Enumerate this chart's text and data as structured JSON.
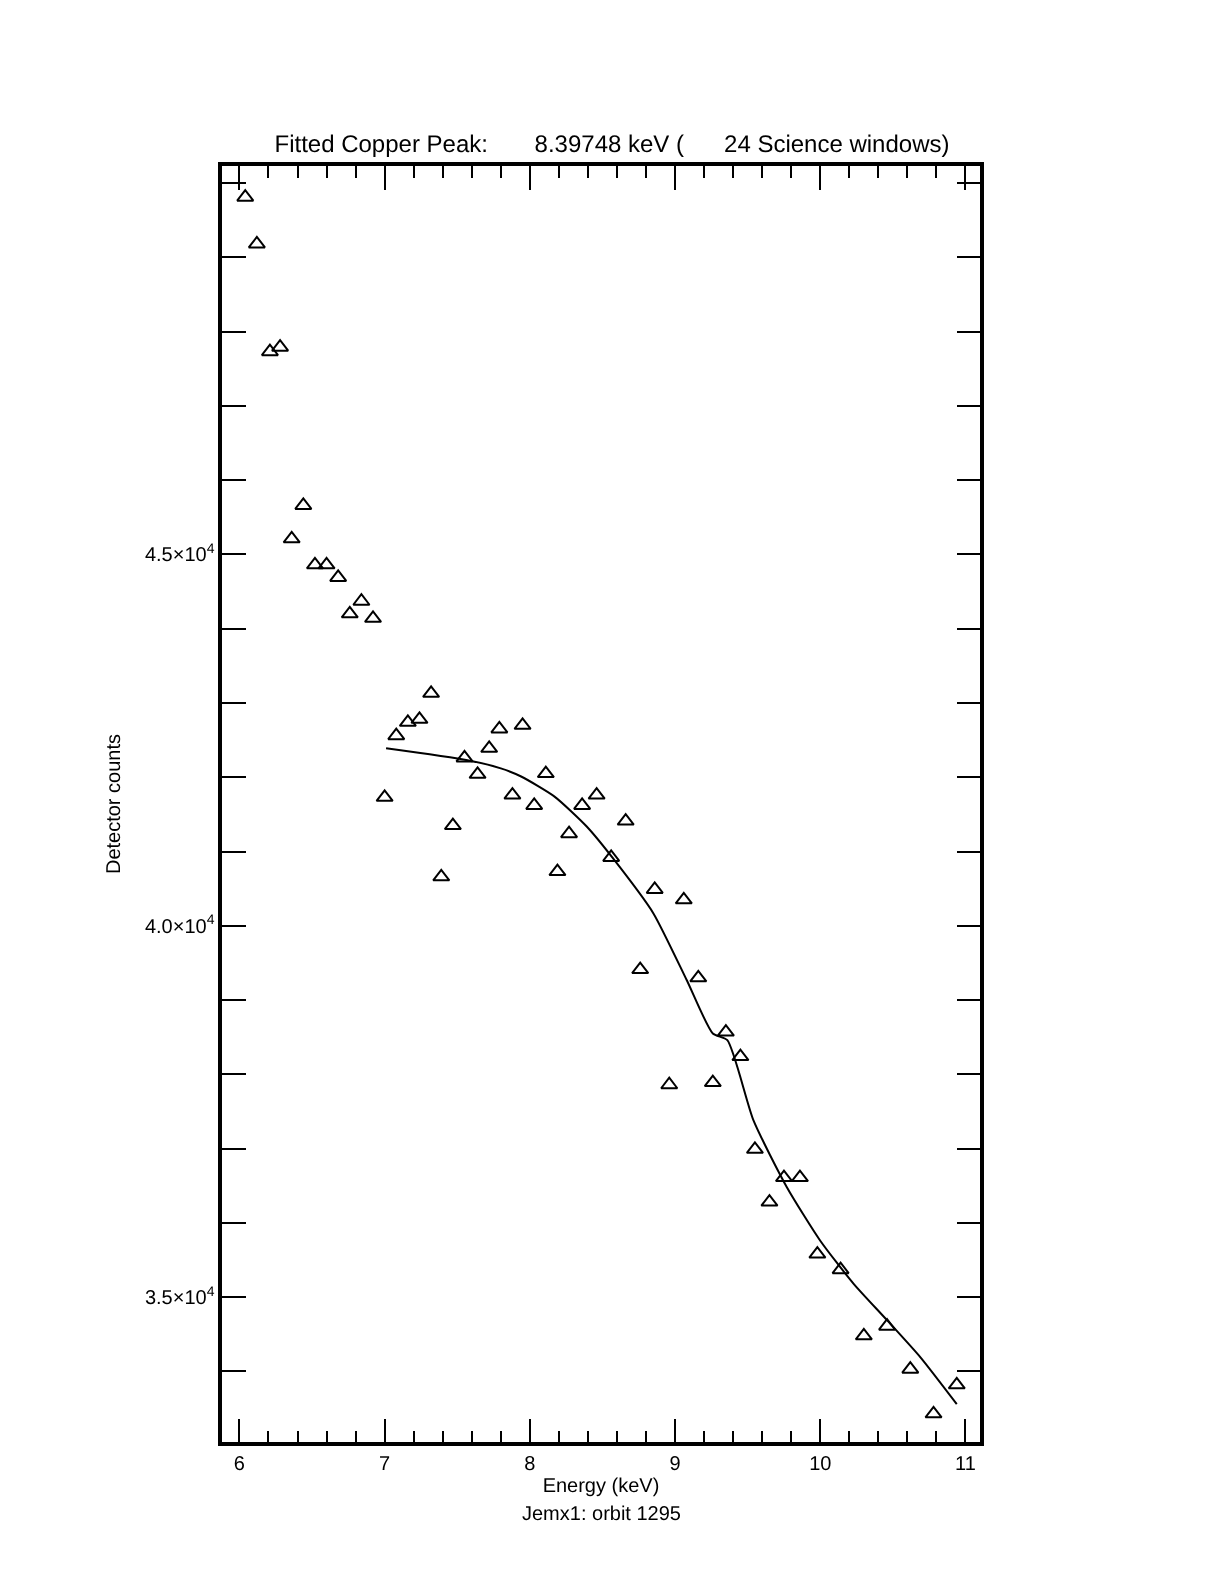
{
  "chart_data": {
    "type": "scatter",
    "title": "Fitted Copper Peak:       8.39748 keV (      24 Science windows)",
    "xlabel": "Energy (keV)",
    "ylabel": "Detector counts",
    "annotations": [
      "Jemx1: orbit 1295"
    ],
    "xlim": [
      5.88,
      11.1
    ],
    "ylim": [
      33050,
      50230
    ],
    "xticks": [
      6,
      7,
      8,
      9,
      10,
      11,
      {
        "value": 6.2,
        "label": null
      },
      {
        "value": 6.4,
        "label": null
      },
      {
        "value": 6.6,
        "label": null
      },
      {
        "value": 6.8,
        "label": null
      },
      {
        "value": 7.2,
        "label": null
      },
      {
        "value": 7.4,
        "label": null
      },
      {
        "value": 7.6,
        "label": null
      },
      {
        "value": 7.8,
        "label": null
      },
      {
        "value": 8.2,
        "label": null
      },
      {
        "value": 8.4,
        "label": null
      },
      {
        "value": 8.6,
        "label": null
      },
      {
        "value": 8.8,
        "label": null
      },
      {
        "value": 9.2,
        "label": null
      },
      {
        "value": 9.4,
        "label": null
      },
      {
        "value": 9.6,
        "label": null
      },
      {
        "value": 9.8,
        "label": null
      },
      {
        "value": 10.2,
        "label": null
      },
      {
        "value": 10.4,
        "label": null
      },
      {
        "value": 10.6,
        "label": null
      },
      {
        "value": 10.8,
        "label": null
      },
      {
        "value": 6.0,
        "label": null
      }
    ],
    "yticks": [
      {
        "value": 35000,
        "label": "3.5×10$^{4}$"
      },
      {
        "value": 40000,
        "label": "4.0×10$^{4}$"
      },
      {
        "value": 45000,
        "label": "4.5×10$^{4}$"
      },
      {
        "value": 34000,
        "label": null
      },
      {
        "value": 36000,
        "label": null
      },
      {
        "value": 37000,
        "label": null
      },
      {
        "value": 38000,
        "label": null
      },
      {
        "value": 39000,
        "label": null
      },
      {
        "value": 41000,
        "label": null
      },
      {
        "value": 42000,
        "label": null
      },
      {
        "value": 43000,
        "label": null
      },
      {
        "value": 44000,
        "label": null
      },
      {
        "value": 46000,
        "label": null
      },
      {
        "value": 47000,
        "label": null
      },
      {
        "value": 48000,
        "label": null
      },
      {
        "value": 49000,
        "label": null
      },
      {
        "value": 50000,
        "label": null
      }
    ],
    "series": [
      {
        "marker": "triangle",
        "color": "#000000",
        "x": [
          6.04,
          6.12,
          6.21,
          6.28,
          6.36,
          6.44,
          6.52,
          6.6,
          6.68,
          6.76,
          6.84,
          6.92,
          7.0,
          7.08,
          7.16,
          7.24,
          7.32,
          7.39,
          7.47,
          7.55,
          7.64,
          7.72,
          7.79,
          7.88,
          7.95,
          8.03,
          8.11,
          8.19,
          8.27,
          8.36,
          8.46,
          8.56,
          8.66,
          8.76,
          8.86,
          8.96,
          9.06,
          9.16,
          9.26,
          9.35,
          9.45,
          9.55,
          9.65,
          9.75,
          9.86,
          9.98,
          10.14,
          10.3,
          10.46,
          10.62,
          10.78,
          10.94
        ],
        "values": [
          49810,
          49180,
          47730,
          47790,
          45210,
          45660,
          44860,
          44860,
          44690,
          44200,
          44370,
          44140,
          41730,
          42560,
          42740,
          42780,
          43130,
          40660,
          41350,
          42260,
          42040,
          42390,
          42650,
          41760,
          42700,
          41620,
          42050,
          40730,
          41240,
          41620,
          41760,
          40920,
          41410,
          39410,
          40490,
          37860,
          40350,
          39300,
          37890,
          38570,
          38240,
          36990,
          36280,
          36610,
          36610,
          35580,
          35370,
          34480,
          34610,
          34030,
          33430,
          33820
        ]
      },
      {
        "type": "line",
        "marker": "none",
        "line_style": "solid",
        "color": "#000000",
        "x": [
          7.01,
          7.57,
          7.8,
          7.94,
          8.17,
          8.39,
          8.58,
          8.85,
          9.08,
          9.26,
          9.36,
          9.54,
          9.77,
          10.0,
          10.23,
          10.46,
          10.69,
          10.94
        ],
        "values": [
          42390,
          42230,
          42120,
          42010,
          41740,
          41340,
          40890,
          40170,
          39270,
          38550,
          38460,
          37380,
          36480,
          35760,
          35180,
          34690,
          34190,
          33560
        ]
      }
    ]
  }
}
